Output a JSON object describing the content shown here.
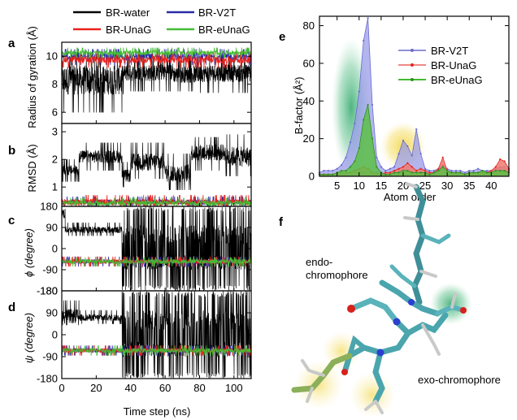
{
  "figure": {
    "panel_letters": [
      "a",
      "b",
      "c",
      "d",
      "e",
      "f"
    ]
  },
  "colors": {
    "BR-water": "#000000",
    "BR-V2T": "#2a2aa8",
    "BR-UnaG": "#e8221c",
    "BR-eUnaG": "#44bb33",
    "highlight_green": "#2fa86a",
    "highlight_yellow": "#f2d43a"
  },
  "chart_data": [
    {
      "panel": "a",
      "type": "line",
      "ylabel": "Radius of gyration (Å)",
      "xlim": [
        0,
        110
      ],
      "ylim": [
        5.2,
        11
      ],
      "yticks": [
        "6",
        "8",
        "10"
      ],
      "legend": {
        "placement": "top",
        "entries": [
          "BR-water",
          "BR-V2T",
          "BR-UnaG",
          "BR-eUnaG"
        ]
      },
      "series": [
        {
          "name": "BR-water",
          "segments": [
            {
              "x": [
                0,
                36
              ],
              "mean": 8.3,
              "min": 6.0,
              "max": 10.0
            },
            {
              "x": [
                36,
                57
              ],
              "mean": 8.8,
              "min": 7.5,
              "max": 10.0
            },
            {
              "x": [
                57,
                65
              ],
              "mean": 8.9,
              "min": 7.5,
              "max": 10.0
            },
            {
              "x": [
                65,
                80
              ],
              "mean": 8.7,
              "min": 7.5,
              "max": 10.0
            },
            {
              "x": [
                80,
                110
              ],
              "mean": 8.8,
              "min": 7.4,
              "max": 10.0
            }
          ]
        },
        {
          "name": "BR-V2T",
          "segments": [
            {
              "x": [
                0,
                110
              ],
              "mean": 9.95,
              "min": 9.4,
              "max": 10.5
            }
          ]
        },
        {
          "name": "BR-UnaG",
          "segments": [
            {
              "x": [
                0,
                110
              ],
              "mean": 9.75,
              "min": 9.2,
              "max": 10.3
            }
          ]
        },
        {
          "name": "BR-eUnaG",
          "segments": [
            {
              "x": [
                0,
                110
              ],
              "mean": 10.25,
              "min": 9.9,
              "max": 10.6
            }
          ]
        }
      ]
    },
    {
      "panel": "b",
      "type": "line",
      "ylabel": "RMSD (Å)",
      "xlim": [
        0,
        110
      ],
      "ylim": [
        0.3,
        3.3
      ],
      "yticks": [
        "1",
        "2",
        "3"
      ],
      "series": [
        {
          "name": "BR-water",
          "segments": [
            {
              "x": [
                0,
                10
              ],
              "mean": 1.6,
              "min": 1.2,
              "max": 2.0
            },
            {
              "x": [
                10,
                35
              ],
              "mean": 2.1,
              "min": 1.6,
              "max": 2.6
            },
            {
              "x": [
                35,
                40
              ],
              "mean": 1.4,
              "min": 1.0,
              "max": 1.9
            },
            {
              "x": [
                40,
                60
              ],
              "mean": 1.9,
              "min": 1.3,
              "max": 2.6
            },
            {
              "x": [
                60,
                75
              ],
              "mean": 1.5,
              "min": 0.9,
              "max": 2.2
            },
            {
              "x": [
                75,
                95
              ],
              "mean": 2.25,
              "min": 1.6,
              "max": 2.8
            },
            {
              "x": [
                95,
                110
              ],
              "mean": 2.1,
              "min": 1.4,
              "max": 2.9
            }
          ]
        },
        {
          "name": "BR-V2T",
          "segments": [
            {
              "x": [
                0,
                110
              ],
              "mean": 0.45,
              "min": 0.3,
              "max": 0.65
            }
          ]
        },
        {
          "name": "BR-UnaG",
          "segments": [
            {
              "x": [
                0,
                110
              ],
              "mean": 0.45,
              "min": 0.3,
              "max": 0.7
            }
          ]
        },
        {
          "name": "BR-eUnaG",
          "segments": [
            {
              "x": [
                0,
                110
              ],
              "mean": 0.42,
              "min": 0.3,
              "max": 0.6
            }
          ]
        }
      ]
    },
    {
      "panel": "c",
      "type": "line",
      "ylabel": "ϕ (degree)",
      "xlim": [
        0,
        110
      ],
      "ylim": [
        -180,
        180
      ],
      "yticks": [
        "180",
        "90",
        "0",
        "-90",
        "-180"
      ],
      "series": [
        {
          "name": "BR-water",
          "segments": [
            {
              "x": [
                0,
                2
              ],
              "mean": 150,
              "min": 100,
              "max": 180
            },
            {
              "x": [
                2,
                35
              ],
              "mean": 80,
              "min": 55,
              "max": 110
            },
            {
              "x": [
                35,
                75
              ],
              "mean": -90,
              "min": -180,
              "max": 180
            },
            {
              "x": [
                75,
                110
              ],
              "mean": -70,
              "min": -180,
              "max": 180
            }
          ]
        },
        {
          "name": "BR-V2T",
          "segments": [
            {
              "x": [
                0,
                110
              ],
              "mean": -55,
              "min": -75,
              "max": -35
            }
          ]
        },
        {
          "name": "BR-UnaG",
          "segments": [
            {
              "x": [
                0,
                110
              ],
              "mean": -55,
              "min": -75,
              "max": -35
            }
          ]
        },
        {
          "name": "BR-eUnaG",
          "segments": [
            {
              "x": [
                0,
                110
              ],
              "mean": -55,
              "min": -75,
              "max": -38
            }
          ]
        }
      ]
    },
    {
      "panel": "d",
      "type": "line",
      "ylabel": "ψ (degree)",
      "xlabel": "Time step (ns)",
      "xlim": [
        0,
        110
      ],
      "xticks": [
        "0",
        "20",
        "40",
        "60",
        "80",
        "100"
      ],
      "ylim": [
        -180,
        180
      ],
      "yticks": [
        "180",
        "90",
        "0",
        "-90",
        "-180"
      ],
      "series": [
        {
          "name": "BR-water",
          "segments": [
            {
              "x": [
                0,
                10
              ],
              "mean": 75,
              "min": 40,
              "max": 140
            },
            {
              "x": [
                10,
                35
              ],
              "mean": 70,
              "min": 45,
              "max": 100
            },
            {
              "x": [
                35,
                75
              ],
              "mean": 40,
              "min": -180,
              "max": 180
            },
            {
              "x": [
                75,
                110
              ],
              "mean": -40,
              "min": -180,
              "max": 180
            }
          ]
        },
        {
          "name": "BR-V2T",
          "segments": [
            {
              "x": [
                0,
                110
              ],
              "mean": -65,
              "min": -85,
              "max": -45
            }
          ]
        },
        {
          "name": "BR-UnaG",
          "segments": [
            {
              "x": [
                0,
                110
              ],
              "mean": -65,
              "min": -85,
              "max": -45
            }
          ]
        },
        {
          "name": "BR-eUnaG",
          "segments": [
            {
              "x": [
                0,
                110
              ],
              "mean": -65,
              "min": -85,
              "max": -45
            }
          ]
        }
      ]
    },
    {
      "panel": "e",
      "type": "area",
      "xlabel": "Atom order",
      "ylabel": "B-factor (Å²)",
      "xlim": [
        1,
        44
      ],
      "ylim": [
        0,
        85
      ],
      "xticks": [
        "5",
        "10",
        "15",
        "20",
        "25",
        "30",
        "35",
        "40"
      ],
      "yticks": [
        "0",
        "20",
        "40",
        "60",
        "80"
      ],
      "legend": {
        "placement": "top-right",
        "entries": [
          "BR-V2T",
          "BR-UnaG",
          "BR-eUnaG"
        ]
      },
      "x": [
        1,
        2,
        3,
        4,
        5,
        6,
        7,
        8,
        9,
        10,
        11,
        12,
        13,
        14,
        15,
        16,
        17,
        18,
        19,
        20,
        21,
        22,
        23,
        24,
        25,
        26,
        27,
        28,
        29,
        30,
        31,
        32,
        33,
        34,
        35,
        36,
        37,
        38,
        39,
        40,
        41,
        42,
        43,
        44
      ],
      "series": [
        {
          "name": "BR-V2T",
          "values": [
            2,
            3,
            3,
            3,
            4,
            6,
            10,
            18,
            28,
            45,
            72,
            84,
            38,
            10,
            5,
            3,
            4,
            5,
            12,
            19,
            16,
            11,
            25,
            12,
            4,
            3,
            3,
            4,
            6,
            4,
            3,
            3,
            3,
            2,
            3,
            3,
            4,
            3,
            3,
            3,
            4,
            5,
            5,
            3
          ]
        },
        {
          "name": "BR-UnaG",
          "values": [
            1,
            1,
            1,
            1,
            1,
            2,
            2,
            2,
            3,
            4,
            5,
            4,
            2,
            2,
            1,
            2,
            2,
            3,
            4,
            5,
            7,
            5,
            3,
            4,
            3,
            2,
            2,
            4,
            10,
            3,
            2,
            2,
            2,
            1,
            2,
            2,
            2,
            2,
            2,
            3,
            5,
            9,
            8,
            4
          ]
        },
        {
          "name": "BR-eUnaG",
          "values": [
            1,
            1,
            1,
            1,
            2,
            3,
            3,
            5,
            8,
            15,
            30,
            38,
            20,
            5,
            2,
            1,
            1,
            2,
            2,
            3,
            3,
            2,
            2,
            2,
            2,
            1,
            2,
            3,
            5,
            3,
            2,
            2,
            2,
            1,
            2,
            2,
            2,
            3,
            2,
            2,
            3,
            3,
            3,
            2
          ]
        }
      ]
    }
  ],
  "panel_f": {
    "labels": {
      "endo_line1": "endo-",
      "endo_line2": "chromophore",
      "exo": "exo-chromophore"
    }
  }
}
